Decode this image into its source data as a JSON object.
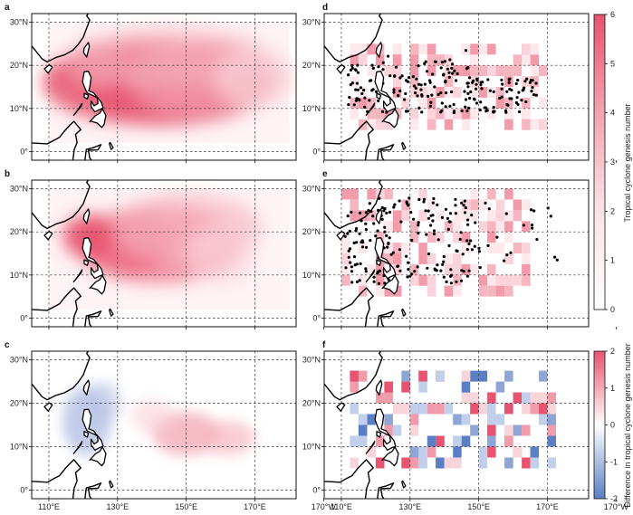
{
  "panels": [
    {
      "id": "a",
      "kind": "density-difference"
    },
    {
      "id": "b",
      "kind": "density"
    },
    {
      "id": "c",
      "kind": "density-difference"
    },
    {
      "id": "d",
      "kind": "points-grid"
    },
    {
      "id": "e",
      "kind": "points-grid"
    },
    {
      "id": "f",
      "kind": "difference-grid"
    }
  ],
  "map": {
    "lon_range": [
      105,
      182
    ],
    "lat_range": [
      -2,
      32
    ],
    "lon_ticks": [
      "110°E",
      "130°E",
      "150°E",
      "170°E",
      "170°W"
    ],
    "lat_ticks": [
      "30°N",
      "20°N",
      "10°N",
      "0°"
    ],
    "grid_lines": true
  },
  "colorbar_top": {
    "label": "Tropical cyclone genesis number",
    "ticks": [
      "0",
      "1",
      "2",
      "3",
      "4",
      "5",
      "6"
    ],
    "range": [
      0,
      6
    ],
    "colors": [
      "#ffffff",
      "#e8536f"
    ]
  },
  "colorbar_bottom": {
    "label": "Difference in tropical cyclone genesis number",
    "ticks": [
      "-2",
      "-1",
      "0",
      "1",
      "2"
    ],
    "range": [
      -2,
      2
    ],
    "colors": [
      "#5a7fc4",
      "#ffffff",
      "#e8536f"
    ]
  }
}
